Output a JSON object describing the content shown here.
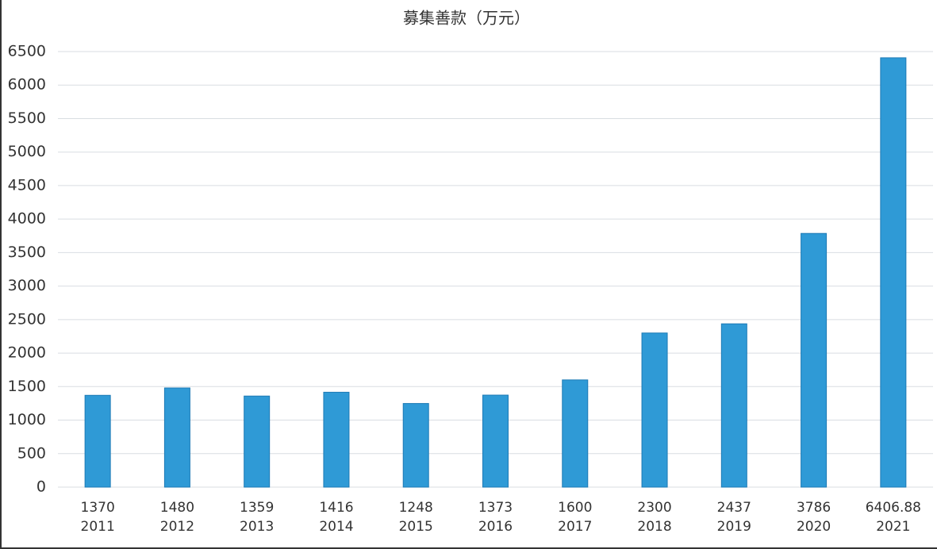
{
  "chart_data": {
    "type": "bar",
    "title": "募集善款（万元）",
    "categories": [
      "2011",
      "2012",
      "2013",
      "2014",
      "2015",
      "2016",
      "2017",
      "2018",
      "2019",
      "2020",
      "2021"
    ],
    "values": [
      1370,
      1480,
      1359,
      1416,
      1248,
      1373,
      1600,
      2300,
      2437,
      3786,
      6406.88
    ],
    "color": "#2f9ad6",
    "ylim": [
      0,
      6500
    ],
    "yticks": [
      0,
      500,
      1000,
      1500,
      2000,
      2500,
      3000,
      3500,
      4000,
      4500,
      5000,
      5500,
      6000,
      6500
    ],
    "grid": true
  }
}
